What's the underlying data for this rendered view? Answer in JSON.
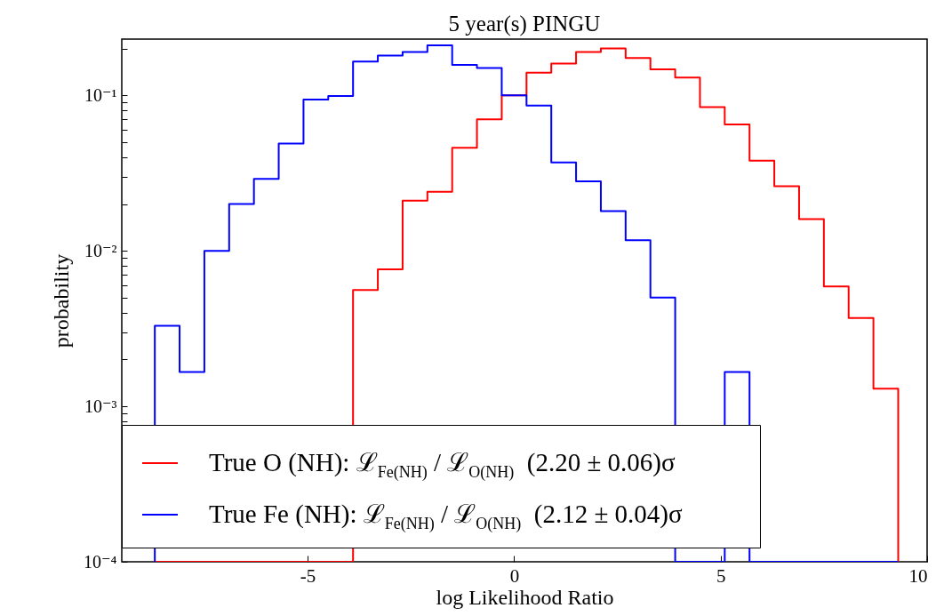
{
  "chart_data": {
    "type": "histogram",
    "title": "5 year(s) PINGU",
    "xlabel": "log Likelihood Ratio",
    "ylabel": "probability",
    "bins": [
      -8.7,
      -8.1,
      -7.5,
      -6.9,
      -6.3,
      -5.7,
      -5.1,
      -4.5,
      -3.9,
      -3.3,
      -2.7,
      -2.1,
      -1.5,
      -0.9,
      -0.3,
      0.3,
      0.9,
      1.5,
      2.1,
      2.7,
      3.3,
      3.9,
      4.5,
      5.1,
      5.7,
      6.3,
      6.9,
      7.5,
      8.1,
      8.7,
      9.3
    ],
    "series": [
      {
        "name": "True O (NH): ℒ$_{Fe(NH)}$ / ℒ$_{O(NH)}$  (2.20 ± 0.06)σ",
        "color": "#ff0000",
        "values": [
          null,
          null,
          null,
          null,
          null,
          null,
          null,
          null,
          0.0056,
          0.0076,
          0.021,
          0.024,
          0.046,
          0.07,
          0.1,
          0.14,
          0.16,
          0.19,
          0.2,
          0.174,
          0.147,
          0.13,
          0.084,
          0.065,
          0.038,
          0.026,
          0.016,
          0.0059,
          0.0037,
          0.0013
        ]
      },
      {
        "name": "True Fe (NH): ℒ$_{Fe(NH)}$ / ℒ$_{O(NH)}$  (2.12 ± 0.04)σ",
        "color": "#0000ff",
        "values": [
          0.0033,
          0.00166,
          0.01,
          0.02,
          0.029,
          0.049,
          0.094,
          0.099,
          0.165,
          0.18,
          0.19,
          0.21,
          0.157,
          0.15,
          0.1,
          0.086,
          0.037,
          0.028,
          0.018,
          0.0117,
          0.005,
          null,
          null,
          0.00166,
          null,
          null,
          null,
          null,
          null,
          null
        ]
      }
    ],
    "xlim": [
      -9.5,
      10
    ],
    "xticks": [
      -5,
      0,
      5,
      10
    ],
    "ylim": [
      0.0001,
      0.23
    ],
    "log": true,
    "yticks": [
      {
        "value": 0.0001,
        "label": "10⁻⁴"
      },
      {
        "value": 0.0002,
        "label": null
      },
      {
        "value": 0.0003,
        "label": null
      },
      {
        "value": 0.0004,
        "label": null
      },
      {
        "value": 0.0005,
        "label": null
      },
      {
        "value": 0.0006,
        "label": null
      },
      {
        "value": 0.0007,
        "label": null
      },
      {
        "value": 0.0008,
        "label": null
      },
      {
        "value": 0.0009,
        "label": null
      },
      {
        "value": 0.001,
        "label": "10⁻³"
      },
      {
        "value": 0.002,
        "label": null
      },
      {
        "value": 0.003,
        "label": null
      },
      {
        "value": 0.004,
        "label": null
      },
      {
        "value": 0.005,
        "label": null
      },
      {
        "value": 0.006,
        "label": null
      },
      {
        "value": 0.007,
        "label": null
      },
      {
        "value": 0.008,
        "label": null
      },
      {
        "value": 0.009,
        "label": null
      },
      {
        "value": 0.01,
        "label": "10⁻²"
      },
      {
        "value": 0.02,
        "label": null
      },
      {
        "value": 0.03,
        "label": null
      },
      {
        "value": 0.04,
        "label": null
      },
      {
        "value": 0.05,
        "label": null
      },
      {
        "value": 0.06,
        "label": null
      },
      {
        "value": 0.07,
        "label": null
      },
      {
        "value": 0.08,
        "label": null
      },
      {
        "value": 0.09,
        "label": null
      },
      {
        "value": 0.1,
        "label": "10⁻¹"
      },
      {
        "value": 0.2,
        "label": null
      }
    ],
    "grid": false,
    "legend": "bottom"
  }
}
